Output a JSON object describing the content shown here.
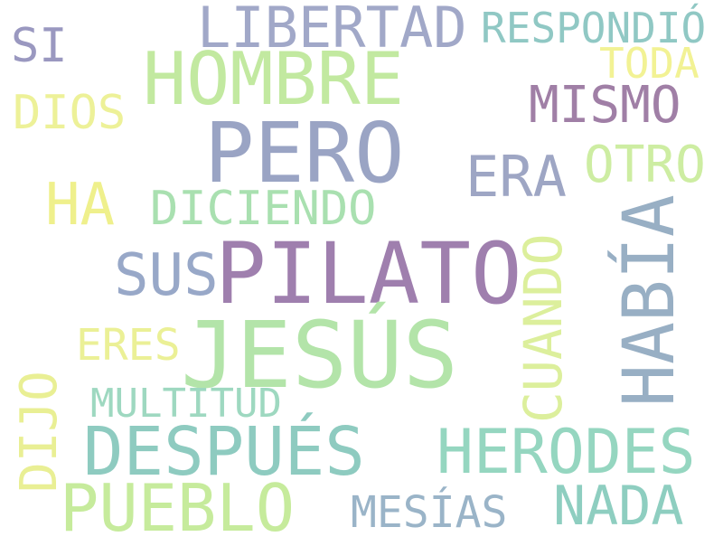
{
  "word_cloud": {
    "words": [
      {
        "text": "PILATO",
        "color": "#9f7fae"
      },
      {
        "text": "JESÚS",
        "color": "#b3e4a9"
      },
      {
        "text": "PERO",
        "color": "#9aa4c4"
      },
      {
        "text": "HOMBRE",
        "color": "#c2e9a0"
      },
      {
        "text": "HABÍA",
        "color": "#98afc4"
      },
      {
        "text": "DESPUÉS",
        "color": "#8ecbc0"
      },
      {
        "text": "PUEBLO",
        "color": "#c6eb9c"
      },
      {
        "text": "HERODES",
        "color": "#95d6c0"
      },
      {
        "text": "LIBERTAD",
        "color": "#a1a8c8"
      },
      {
        "text": "CUANDO",
        "color": "#dcef9c"
      },
      {
        "text": "NADA",
        "color": "#8ecec0"
      },
      {
        "text": "ERA",
        "color": "#9ea6c4"
      },
      {
        "text": "SUS",
        "color": "#98a8c8"
      },
      {
        "text": "HA",
        "color": "#eff08c"
      },
      {
        "text": "MISMO",
        "color": "#a07fa6"
      },
      {
        "text": "OTRO",
        "color": "#cdeda2"
      },
      {
        "text": "DICIENDO",
        "color": "#a9e0b0"
      },
      {
        "text": "DIJO",
        "color": "#e9ef94"
      },
      {
        "text": "RESPONDIÓ",
        "color": "#90c8c4"
      },
      {
        "text": "MESÍAS",
        "color": "#9ab4c8"
      },
      {
        "text": "DIOS",
        "color": "#edf198"
      },
      {
        "text": "MULTITUD",
        "color": "#9ed8c0"
      },
      {
        "text": "ERES",
        "color": "#ebf096"
      },
      {
        "text": "SI",
        "color": "#9a98c0"
      },
      {
        "text": "TODA",
        "color": "#f2f294"
      }
    ]
  }
}
